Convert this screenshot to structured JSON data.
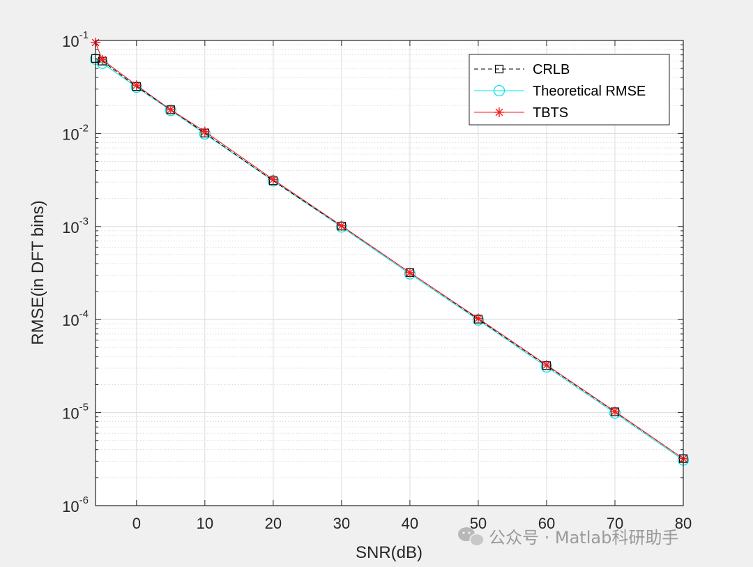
{
  "chart_data": {
    "type": "line",
    "title": "",
    "xlabel": "SNR(dB)",
    "ylabel": "RMSE(in DFT bins)",
    "xscale": "linear",
    "yscale": "log",
    "xlim": [
      -6,
      80
    ],
    "ylim": [
      1e-06,
      0.1
    ],
    "xticks": [
      0,
      10,
      20,
      30,
      40,
      50,
      60,
      70,
      80
    ],
    "yticks": [
      {
        "value": 1e-06,
        "base": "10",
        "exp": "-6"
      },
      {
        "value": 1e-05,
        "base": "10",
        "exp": "-5"
      },
      {
        "value": 0.0001,
        "base": "10",
        "exp": "-4"
      },
      {
        "value": 0.001,
        "base": "10",
        "exp": "-3"
      },
      {
        "value": 0.01,
        "base": "10",
        "exp": "-2"
      },
      {
        "value": 0.1,
        "base": "10",
        "exp": "-1"
      }
    ],
    "grid": true,
    "legend_position": "top-right",
    "series": [
      {
        "name": "CRLB",
        "color": "#000000",
        "line": "dashed",
        "marker": "square",
        "x": [
          -6,
          -5,
          0,
          5,
          10,
          20,
          30,
          40,
          50,
          60,
          70,
          80
        ],
        "y": [
          0.064,
          0.06,
          0.032,
          0.018,
          0.0101,
          0.0031,
          0.00101,
          0.00032,
          0.000101,
          3.2e-05,
          1.02e-05,
          3.2e-06
        ]
      },
      {
        "name": "Theoretical RMSE",
        "color": "#00e5e5",
        "line": "solid",
        "marker": "circle",
        "x": [
          -6,
          -5,
          0,
          5,
          10,
          20,
          30,
          40,
          50,
          60,
          70,
          80
        ],
        "y": [
          0.063,
          0.057,
          0.0315,
          0.0177,
          0.0099,
          0.0031,
          0.00099,
          0.00031,
          9.9e-05,
          3.1e-05,
          9.9e-06,
          3.1e-06
        ]
      },
      {
        "name": "TBTS",
        "color": "#ff1a1a",
        "line": "solid",
        "marker": "asterisk",
        "x": [
          -6,
          -5,
          0,
          5,
          10,
          20,
          30,
          40,
          50,
          60,
          70,
          80
        ],
        "y": [
          0.095,
          0.062,
          0.033,
          0.018,
          0.0105,
          0.0032,
          0.00102,
          0.00032,
          0.000103,
          3.25e-05,
          1.03e-05,
          3.2e-06
        ]
      }
    ]
  },
  "watermark": {
    "icon": "wechat-icon",
    "text": "公众号 · Matlab科研助手"
  }
}
